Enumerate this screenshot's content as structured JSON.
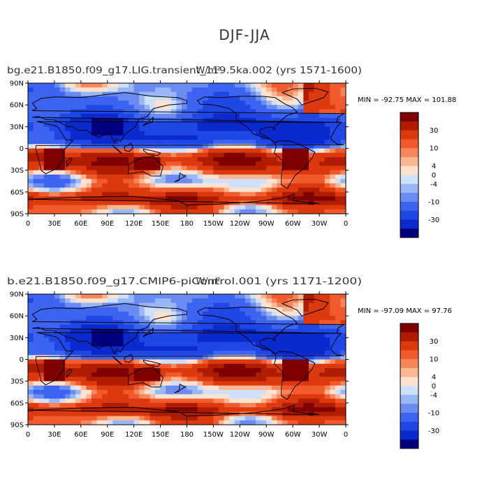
{
  "page_title": "DJF-JJA",
  "colors": {
    "ocean_blue": "#2b66e0",
    "deep_blue": "#0c34c4",
    "warm_red": "#e0461c",
    "deep_red": "#8b0000"
  },
  "chart_data": [
    {
      "type": "heatmap",
      "title": "bg.e21.B1850.f09_g17.LIG.transient_119.5ka.002 (yrs 1571-1600)",
      "title_overlap": "W/m²",
      "units": "W/m^2",
      "stats": "MIN = -92.75 MAX = 101.88",
      "min": -92.75,
      "max": 101.88,
      "x_ticks": [
        "0",
        "30E",
        "60E",
        "90E",
        "120E",
        "150E",
        "180",
        "150W",
        "120W",
        "90W",
        "60W",
        "30W",
        "0"
      ],
      "y_ticks": [
        "90N",
        "60N",
        "30N",
        "0",
        "30S",
        "60S",
        "90S"
      ],
      "xlim": [
        0,
        360
      ],
      "ylim": [
        -90,
        90
      ],
      "legend_levels": [
        -50,
        -30,
        -20,
        -10,
        -6,
        -4,
        -2,
        2,
        4,
        6,
        10,
        20,
        30,
        50
      ],
      "legend_labels": [
        "30",
        "10",
        "4",
        "0",
        "-4",
        "-10",
        "-30"
      ]
    },
    {
      "type": "heatmap",
      "title": "b.e21.B1850.f09_g17.CMIP6-piControl.001 (yrs 1171-1200)",
      "title_overlap": "W/m²",
      "units": "W/m^2",
      "stats": "MIN = -97.09 MAX =  97.76",
      "min": -97.09,
      "max": 97.76,
      "x_ticks": [
        "0",
        "30E",
        "60E",
        "90E",
        "120E",
        "150E",
        "180",
        "150W",
        "120W",
        "90W",
        "60W",
        "30W",
        "0"
      ],
      "y_ticks": [
        "90N",
        "60N",
        "30N",
        "0",
        "30S",
        "60S",
        "90S"
      ],
      "xlim": [
        0,
        360
      ],
      "ylim": [
        -90,
        90
      ],
      "legend_levels": [
        -50,
        -30,
        -20,
        -10,
        -6,
        -4,
        -2,
        2,
        4,
        6,
        10,
        20,
        30,
        50
      ],
      "legend_labels": [
        "30",
        "10",
        "4",
        "0",
        "-4",
        "-10",
        "-30"
      ]
    }
  ]
}
